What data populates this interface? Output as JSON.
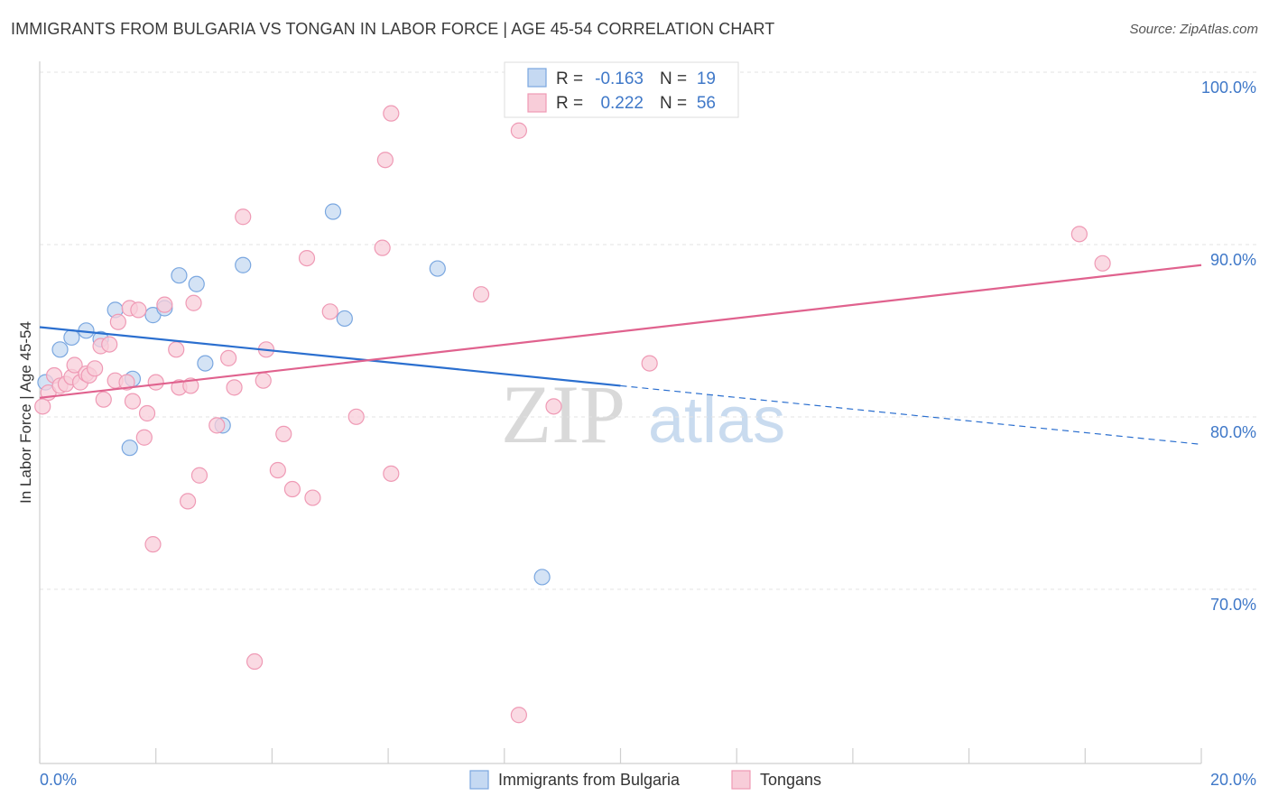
{
  "header": {
    "title": "IMMIGRANTS FROM BULGARIA VS TONGAN IN LABOR FORCE | AGE 45-54 CORRELATION CHART",
    "source": "Source: ZipAtlas.com"
  },
  "watermark": {
    "zip": "ZIP",
    "atlas": "atlas"
  },
  "chart_data": {
    "type": "scatter",
    "title": "IMMIGRANTS FROM BULGARIA VS TONGAN IN LABOR FORCE | AGE 45-54 CORRELATION CHART",
    "xlabel": "",
    "ylabel": "In Labor Force | Age 45-54",
    "xlim": [
      0,
      20
    ],
    "ylim": [
      60,
      102
    ],
    "x_tick_labels": [
      {
        "value": 0,
        "label": "0.0%"
      },
      {
        "value": 20,
        "label": "20.0%"
      }
    ],
    "y_tick_labels": [
      {
        "value": 100,
        "label": "100.0%"
      },
      {
        "value": 90,
        "label": "90.0%"
      },
      {
        "value": 80,
        "label": "80.0%"
      },
      {
        "value": 70,
        "label": "70.0%"
      }
    ],
    "legend_stats": [
      {
        "r_label": "R =",
        "r_value": "-0.163",
        "n_label": "N =",
        "n_value": "19"
      },
      {
        "r_label": "R =",
        "r_value": "0.222",
        "n_label": "N =",
        "n_value": "56"
      }
    ],
    "series": [
      {
        "name": "Immigrants from Bulgaria",
        "color": "#7aa7e0",
        "fill": "#c5d9f2",
        "line_color": "#2b6fcf",
        "trend": {
          "x0": 0,
          "y0": 86.1,
          "x1": 10,
          "y1": 82.7,
          "dash_to_x": 20,
          "dash_to_y": 79.3
        },
        "points": [
          [
            0.1,
            82.9
          ],
          [
            0.35,
            84.8
          ],
          [
            0.55,
            85.5
          ],
          [
            0.8,
            85.9
          ],
          [
            1.05,
            85.4
          ],
          [
            1.3,
            87.1
          ],
          [
            1.55,
            79.1
          ],
          [
            1.6,
            83.1
          ],
          [
            1.95,
            86.8
          ],
          [
            2.15,
            87.2
          ],
          [
            2.4,
            89.1
          ],
          [
            2.7,
            88.6
          ],
          [
            2.85,
            84.0
          ],
          [
            3.15,
            80.4
          ],
          [
            3.5,
            89.7
          ],
          [
            5.05,
            92.8
          ],
          [
            5.25,
            86.6
          ],
          [
            6.85,
            89.5
          ],
          [
            8.65,
            71.6
          ]
        ]
      },
      {
        "name": "Tongans",
        "color": "#ef9ab5",
        "fill": "#f8cdd9",
        "line_color": "#e0628e",
        "trend": {
          "x0": 0,
          "y0": 82.0,
          "x1": 20,
          "y1": 89.7
        },
        "points": [
          [
            0.05,
            81.5
          ],
          [
            0.15,
            82.3
          ],
          [
            0.25,
            83.3
          ],
          [
            0.35,
            82.7
          ],
          [
            0.45,
            82.8
          ],
          [
            0.55,
            83.2
          ],
          [
            0.6,
            83.9
          ],
          [
            0.7,
            82.9
          ],
          [
            0.8,
            83.4
          ],
          [
            0.85,
            83.3
          ],
          [
            0.95,
            83.7
          ],
          [
            1.05,
            85.0
          ],
          [
            1.1,
            81.9
          ],
          [
            1.2,
            85.1
          ],
          [
            1.3,
            83.0
          ],
          [
            1.35,
            86.4
          ],
          [
            1.5,
            82.9
          ],
          [
            1.55,
            87.2
          ],
          [
            1.6,
            81.8
          ],
          [
            1.7,
            87.1
          ],
          [
            1.8,
            79.7
          ],
          [
            1.85,
            81.1
          ],
          [
            1.95,
            73.5
          ],
          [
            2.0,
            82.9
          ],
          [
            2.15,
            87.4
          ],
          [
            2.35,
            84.8
          ],
          [
            2.4,
            82.6
          ],
          [
            2.55,
            76.0
          ],
          [
            2.6,
            82.7
          ],
          [
            2.65,
            87.5
          ],
          [
            2.75,
            77.5
          ],
          [
            3.05,
            80.4
          ],
          [
            3.25,
            84.3
          ],
          [
            3.35,
            82.6
          ],
          [
            3.5,
            92.5
          ],
          [
            3.7,
            66.7
          ],
          [
            3.85,
            83.0
          ],
          [
            3.9,
            84.8
          ],
          [
            4.1,
            77.8
          ],
          [
            4.2,
            79.9
          ],
          [
            4.35,
            76.7
          ],
          [
            4.6,
            90.1
          ],
          [
            4.7,
            76.2
          ],
          [
            5.0,
            87.0
          ],
          [
            5.45,
            80.9
          ],
          [
            5.9,
            90.7
          ],
          [
            5.95,
            95.8
          ],
          [
            6.05,
            98.5
          ],
          [
            6.05,
            77.6
          ],
          [
            7.6,
            88.0
          ],
          [
            8.25,
            97.5
          ],
          [
            8.25,
            63.6
          ],
          [
            8.85,
            81.5
          ],
          [
            10.5,
            84.0
          ],
          [
            17.9,
            91.5
          ],
          [
            18.3,
            89.8
          ]
        ]
      }
    ]
  }
}
